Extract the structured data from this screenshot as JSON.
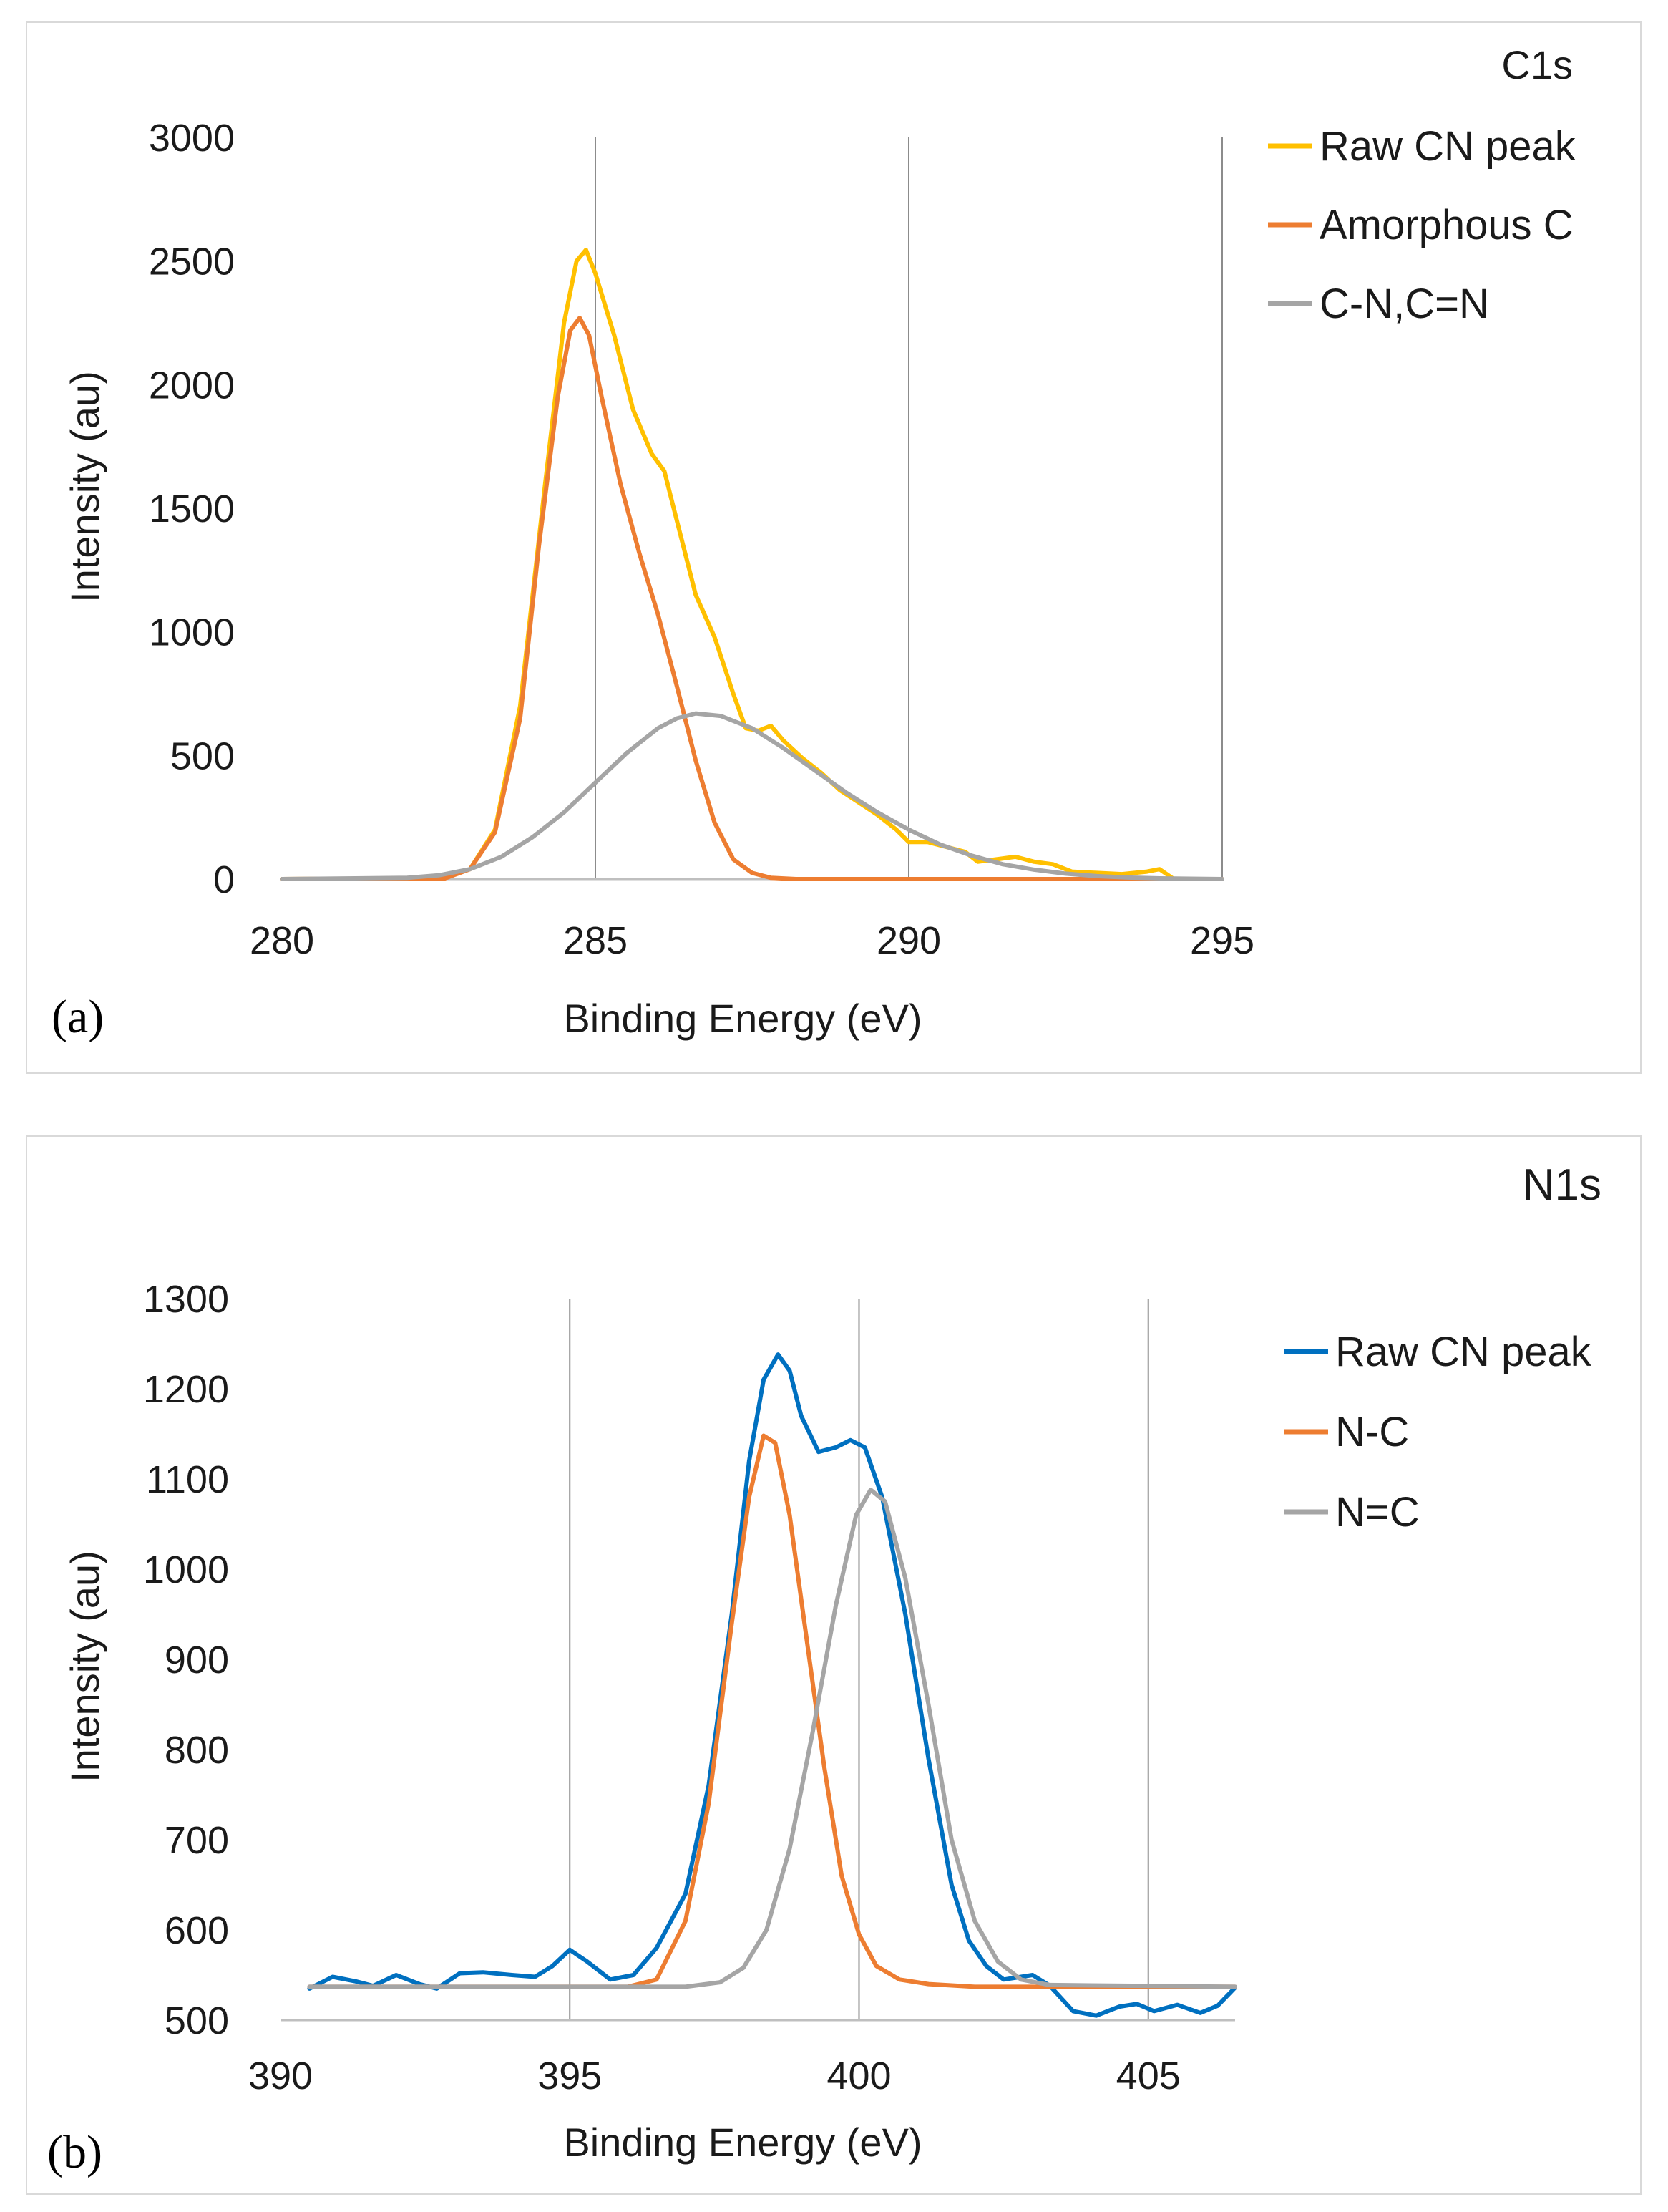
{
  "chart_data": [
    {
      "type": "line",
      "panel_label": "(a)",
      "title": "C1s",
      "xlabel": "Binding Energy (eV)",
      "ylabel": "Intensity (au)",
      "xlim": [
        280,
        295
      ],
      "ylim": [
        0,
        3000
      ],
      "xticks": [
        280,
        285,
        290,
        295
      ],
      "yticks": [
        0,
        500,
        1000,
        1500,
        2000,
        2500,
        3000
      ],
      "grid": "vertical",
      "legend_position": "top-right",
      "series": [
        {
          "name": "Raw CN peak",
          "color": "#ffc000",
          "points": [
            [
              280,
              0
            ],
            [
              282,
              2
            ],
            [
              282.6,
              8
            ],
            [
              283,
              40
            ],
            [
              283.4,
              200
            ],
            [
              283.8,
              700
            ],
            [
              284.2,
              1600
            ],
            [
              284.5,
              2250
            ],
            [
              284.7,
              2500
            ],
            [
              284.85,
              2545
            ],
            [
              285,
              2450
            ],
            [
              285.3,
              2200
            ],
            [
              285.6,
              1900
            ],
            [
              285.9,
              1720
            ],
            [
              286.1,
              1650
            ],
            [
              286.3,
              1450
            ],
            [
              286.6,
              1150
            ],
            [
              286.9,
              980
            ],
            [
              287.2,
              750
            ],
            [
              287.4,
              610
            ],
            [
              287.6,
              600
            ],
            [
              287.8,
              620
            ],
            [
              288,
              560
            ],
            [
              288.3,
              490
            ],
            [
              288.6,
              430
            ],
            [
              288.9,
              360
            ],
            [
              289.2,
              310
            ],
            [
              289.5,
              260
            ],
            [
              289.8,
              200
            ],
            [
              290,
              150
            ],
            [
              290.3,
              150
            ],
            [
              290.6,
              130
            ],
            [
              290.9,
              110
            ],
            [
              291.1,
              70
            ],
            [
              291.4,
              80
            ],
            [
              291.7,
              90
            ],
            [
              292,
              70
            ],
            [
              292.3,
              60
            ],
            [
              292.6,
              30
            ],
            [
              293,
              25
            ],
            [
              293.4,
              20
            ],
            [
              293.8,
              30
            ],
            [
              294,
              40
            ],
            [
              294.2,
              5
            ]
          ]
        },
        {
          "name": "Amorphous C",
          "color": "#ed7d31",
          "points": [
            [
              280,
              0
            ],
            [
              282.6,
              3
            ],
            [
              283,
              40
            ],
            [
              283.4,
              190
            ],
            [
              283.8,
              650
            ],
            [
              284.1,
              1350
            ],
            [
              284.4,
              1950
            ],
            [
              284.6,
              2220
            ],
            [
              284.75,
              2270
            ],
            [
              284.9,
              2200
            ],
            [
              285.1,
              1950
            ],
            [
              285.4,
              1600
            ],
            [
              285.7,
              1320
            ],
            [
              286,
              1070
            ],
            [
              286.3,
              780
            ],
            [
              286.6,
              480
            ],
            [
              286.9,
              230
            ],
            [
              287.2,
              80
            ],
            [
              287.5,
              25
            ],
            [
              287.8,
              5
            ],
            [
              288.2,
              0
            ],
            [
              295,
              0
            ]
          ]
        },
        {
          "name": "C-N,C=N",
          "color": "#a5a5a5",
          "points": [
            [
              280,
              0
            ],
            [
              282,
              5
            ],
            [
              282.5,
              15
            ],
            [
              283,
              40
            ],
            [
              283.5,
              90
            ],
            [
              284,
              170
            ],
            [
              284.5,
              270
            ],
            [
              285,
              390
            ],
            [
              285.5,
              510
            ],
            [
              286,
              610
            ],
            [
              286.3,
              650
            ],
            [
              286.6,
              670
            ],
            [
              287,
              660
            ],
            [
              287.5,
              610
            ],
            [
              288,
              530
            ],
            [
              288.5,
              440
            ],
            [
              289,
              350
            ],
            [
              289.5,
              270
            ],
            [
              290,
              200
            ],
            [
              290.5,
              140
            ],
            [
              291,
              95
            ],
            [
              291.5,
              60
            ],
            [
              292,
              38
            ],
            [
              292.5,
              22
            ],
            [
              293,
              12
            ],
            [
              293.5,
              6
            ],
            [
              294,
              3
            ],
            [
              295,
              0
            ]
          ]
        }
      ]
    },
    {
      "type": "line",
      "panel_label": "(b)",
      "title": "N1s",
      "xlabel": "Binding Energy (eV)",
      "ylabel": "Intensity (au)",
      "xlim": [
        390,
        406.5
      ],
      "ylim": [
        500,
        1300
      ],
      "xticks": [
        390,
        395,
        400,
        405
      ],
      "yticks": [
        500,
        600,
        700,
        800,
        900,
        1000,
        1100,
        1200,
        1300
      ],
      "grid": "vertical",
      "legend_position": "top-right",
      "series": [
        {
          "name": "Raw CN peak",
          "color": "#0070c0",
          "points": [
            [
              390.5,
              535
            ],
            [
              390.9,
              548
            ],
            [
              391.3,
              543
            ],
            [
              391.6,
              538
            ],
            [
              392,
              550
            ],
            [
              392.4,
              540
            ],
            [
              392.7,
              535
            ],
            [
              393.1,
              552
            ],
            [
              393.5,
              553
            ],
            [
              394,
              550
            ],
            [
              394.4,
              548
            ],
            [
              394.7,
              560
            ],
            [
              395,
              578
            ],
            [
              395.3,
              565
            ],
            [
              395.7,
              545
            ],
            [
              396.1,
              550
            ],
            [
              396.5,
              580
            ],
            [
              397,
              640
            ],
            [
              397.4,
              760
            ],
            [
              397.8,
              950
            ],
            [
              398.1,
              1120
            ],
            [
              398.35,
              1210
            ],
            [
              398.6,
              1238
            ],
            [
              398.8,
              1220
            ],
            [
              399,
              1170
            ],
            [
              399.3,
              1130
            ],
            [
              399.6,
              1135
            ],
            [
              399.85,
              1143
            ],
            [
              400.1,
              1135
            ],
            [
              400.4,
              1080
            ],
            [
              400.8,
              950
            ],
            [
              401.2,
              790
            ],
            [
              401.6,
              650
            ],
            [
              401.9,
              588
            ],
            [
              402.2,
              560
            ],
            [
              402.5,
              545
            ],
            [
              402.8,
              548
            ],
            [
              403,
              550
            ],
            [
              403.3,
              538
            ],
            [
              403.7,
              510
            ],
            [
              404.1,
              505
            ],
            [
              404.5,
              515
            ],
            [
              404.8,
              518
            ],
            [
              405.1,
              510
            ],
            [
              405.5,
              517
            ],
            [
              405.9,
              508
            ],
            [
              406.2,
              516
            ],
            [
              406.5,
              536
            ]
          ]
        },
        {
          "name": "N-C",
          "color": "#ed7d31",
          "points": [
            [
              390.5,
              537
            ],
            [
              396,
              537
            ],
            [
              396.5,
              545
            ],
            [
              397,
              610
            ],
            [
              397.4,
              740
            ],
            [
              397.8,
              940
            ],
            [
              398.1,
              1080
            ],
            [
              398.35,
              1148
            ],
            [
              398.55,
              1140
            ],
            [
              398.8,
              1060
            ],
            [
              399.1,
              920
            ],
            [
              399.4,
              780
            ],
            [
              399.7,
              660
            ],
            [
              400,
              595
            ],
            [
              400.3,
              560
            ],
            [
              400.7,
              545
            ],
            [
              401.2,
              540
            ],
            [
              402,
              537
            ],
            [
              406.5,
              537
            ]
          ]
        },
        {
          "name": "N=C",
          "color": "#a5a5a5",
          "points": [
            [
              390.5,
              537
            ],
            [
              397,
              537
            ],
            [
              397.6,
              542
            ],
            [
              398,
              558
            ],
            [
              398.4,
              600
            ],
            [
              398.8,
              690
            ],
            [
              399.2,
              820
            ],
            [
              399.6,
              960
            ],
            [
              399.95,
              1060
            ],
            [
              400.2,
              1088
            ],
            [
              400.45,
              1075
            ],
            [
              400.8,
              990
            ],
            [
              401.2,
              850
            ],
            [
              401.6,
              700
            ],
            [
              402,
              610
            ],
            [
              402.4,
              565
            ],
            [
              402.8,
              545
            ],
            [
              403.3,
              539
            ],
            [
              406.5,
              537
            ]
          ]
        }
      ]
    }
  ]
}
